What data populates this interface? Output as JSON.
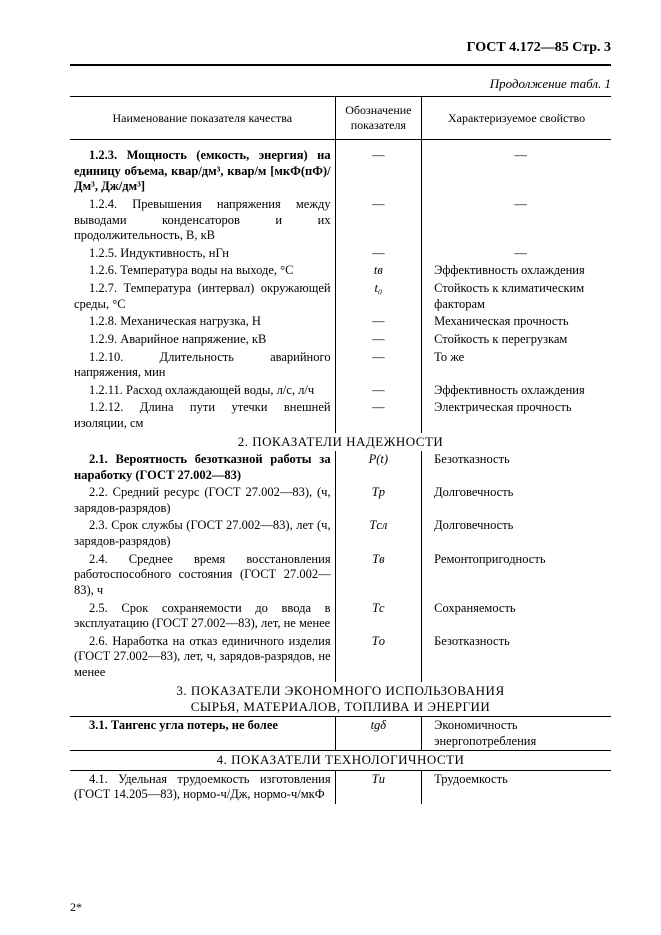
{
  "doc_header": "ГОСТ 4.172—85 Стр. 3",
  "continuation": "Продолжение табл. 1",
  "headers": {
    "c1": "Наименование показателя качества",
    "c2": "Обозначение показателя",
    "c3": "Характеризуемое свойство"
  },
  "rows1": [
    {
      "n": "1.2.3. Мощность (емкость, энергия) на единицу объема, квар/дм³, квар/м [мкФ(пФ)/Дм³, Дж/дм³]",
      "s": "—",
      "p": "—",
      "b": true
    },
    {
      "n": "1.2.4. Превышения напряжения между выводами конденсаторов и их продолжительность, В, кВ",
      "s": "—",
      "p": "—"
    },
    {
      "n": "1.2.5. Индуктивность, нГн",
      "s": "—",
      "p": "—"
    },
    {
      "n": "1.2.6. Температура воды на выходе, °С",
      "s": "tв",
      "p": "Эффективность охлаждения"
    },
    {
      "n": "1.2.7. Температура (интервал) окружающей среды, °С",
      "s": "t₀",
      "p": "Стойкость к климатическим факторам"
    },
    {
      "n": "1.2.8. Механическая нагрузка, Н",
      "s": "—",
      "p": "Механическая прочность"
    },
    {
      "n": "1.2.9. Аварийное напряжение, кВ",
      "s": "—",
      "p": "Стойкость к перегрузкам"
    },
    {
      "n": "1.2.10. Длительность аварийного напряжения, мин",
      "s": "—",
      "p": "То же"
    },
    {
      "n": "1.2.11. Расход охлаждающей воды, л/с, л/ч",
      "s": "—",
      "p": "Эффективность охлаждения"
    },
    {
      "n": "1.2.12. Длина пути утечки внешней изоляции, см",
      "s": "—",
      "p": "Электрическая прочность"
    }
  ],
  "section2": "2. ПОКАЗАТЕЛИ НАДЕЖНОСТИ",
  "rows2": [
    {
      "n": "2.1. Вероятность безотказной работы за наработку (ГОСТ 27.002—83)",
      "s": "P(t)",
      "p": "Безотказность",
      "b": true
    },
    {
      "n": "2.2. Средний ресурс (ГОСТ 27.002—83), (ч, зарядов-разрядов)",
      "s": "Tр",
      "p": "Долговечность"
    },
    {
      "n": "2.3. Срок службы (ГОСТ 27.002—83), лет (ч, зарядов-разрядов)",
      "s": "Tсл",
      "p": "Долговечность"
    },
    {
      "n": "2.4. Среднее время восстановления работоспособного состояния (ГОСТ 27.002—83), ч",
      "s": "Tв",
      "p": "Ремонтопригодность"
    },
    {
      "n": "2.5. Срок сохраняемости до ввода в эксплуатацию (ГОСТ 27.002—83), лет, не менее",
      "s": "Tс",
      "p": "Сохраняемость"
    },
    {
      "n": "2.6. Наработка на отказ единичного изделия (ГОСТ 27.002—83), лет, ч, зарядов-разрядов, не менее",
      "s": "Tо",
      "p": "Безотказность"
    }
  ],
  "section3a": "3. ПОКАЗАТЕЛИ ЭКОНОМНОГО ИСПОЛЬЗОВАНИЯ",
  "section3b": "СЫРЬЯ, МАТЕРИАЛОВ, ТОПЛИВА И ЭНЕРГИИ",
  "rows3": [
    {
      "n": "3.1. Тангенс угла потерь, не более",
      "s": "tgδ",
      "p": "Экономичность энергопотребления",
      "b": true
    }
  ],
  "section4": "4. ПОКАЗАТЕЛИ ТЕХНОЛОГИЧНОСТИ",
  "rows4": [
    {
      "n": "4.1. Удельная трудоемкость изготовления (ГОСТ 14.205—83), нормо-ч/Дж, нормо-ч/мкФ",
      "s": "Tи",
      "p": "Трудоемкость"
    }
  ],
  "footer": "2*"
}
